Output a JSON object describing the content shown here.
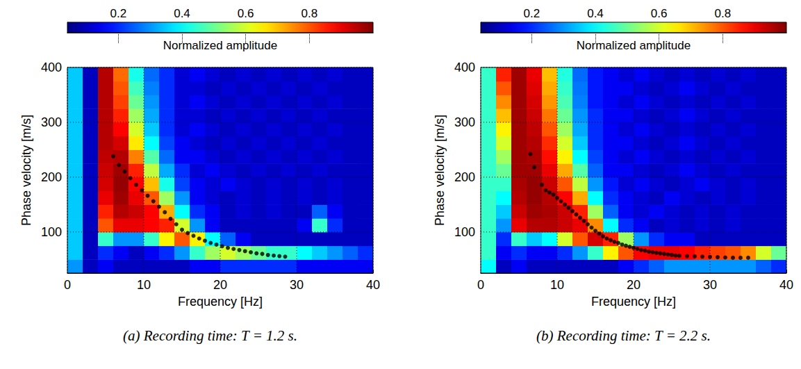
{
  "chart_data": [
    {
      "type": "heatmap",
      "caption": "(a) Recording time: T = 1.2 s.",
      "x_label": "Frequency [Hz]",
      "y_label": "Phase velocity [m/s]",
      "xlim": [
        0,
        40
      ],
      "xticks": [
        0,
        10,
        20,
        30,
        40
      ],
      "ylim": [
        25,
        400
      ],
      "yticks": [
        100,
        200,
        300,
        400
      ],
      "grid": true,
      "x_bins": [
        0,
        2,
        4,
        6,
        8,
        10,
        12,
        14,
        16,
        18,
        20,
        22,
        24,
        26,
        28,
        30,
        32,
        34,
        36,
        38,
        40
      ],
      "y_bins": [
        25,
        50,
        75,
        100,
        125,
        150,
        175,
        200,
        225,
        250,
        275,
        300,
        325,
        350,
        375,
        400
      ],
      "cells": [
        [
          0.3,
          0.1,
          0.15,
          0.1,
          0.1,
          0.1,
          0.1,
          0.1,
          0.15,
          0.15,
          0.2,
          0.2,
          0.2,
          0.2,
          0.2,
          0.15,
          0.15,
          0.15,
          0.15,
          0.15
        ],
        [
          0.35,
          0.1,
          0.2,
          0.15,
          0.1,
          0.15,
          0.2,
          0.3,
          0.45,
          0.55,
          0.6,
          0.55,
          0.5,
          0.45,
          0.45,
          0.4,
          0.35,
          0.3,
          0.25,
          0.2
        ],
        [
          0.35,
          0.1,
          0.45,
          0.3,
          0.3,
          0.45,
          0.65,
          0.8,
          0.65,
          0.4,
          0.25,
          0.15,
          0.1,
          0.1,
          0.1,
          0.1,
          0.1,
          0.1,
          0.1,
          0.1
        ],
        [
          0.35,
          0.1,
          0.8,
          0.9,
          0.9,
          0.88,
          0.85,
          0.6,
          0.3,
          0.15,
          0.1,
          0.1,
          0.1,
          0.1,
          0.1,
          0.15,
          0.45,
          0.2,
          0.1,
          0.1
        ],
        [
          0.35,
          0.1,
          0.85,
          0.95,
          0.93,
          0.88,
          0.72,
          0.4,
          0.2,
          0.15,
          0.1,
          0.12,
          0.1,
          0.12,
          0.1,
          0.1,
          0.25,
          0.15,
          0.1,
          0.1
        ],
        [
          0.35,
          0.1,
          0.9,
          0.97,
          0.9,
          0.8,
          0.55,
          0.3,
          0.15,
          0.12,
          0.1,
          0.12,
          0.1,
          0.12,
          0.1,
          0.12,
          0.1,
          0.12,
          0.1,
          0.1
        ],
        [
          0.35,
          0.1,
          0.92,
          0.98,
          0.88,
          0.7,
          0.42,
          0.22,
          0.15,
          0.12,
          0.15,
          0.12,
          0.1,
          0.12,
          0.1,
          0.12,
          0.1,
          0.12,
          0.1,
          0.1
        ],
        [
          0.35,
          0.1,
          0.93,
          0.97,
          0.85,
          0.58,
          0.32,
          0.2,
          0.12,
          0.15,
          0.12,
          0.1,
          0.12,
          0.1,
          0.12,
          0.1,
          0.12,
          0.1,
          0.1,
          0.1
        ],
        [
          0.35,
          0.1,
          0.94,
          0.95,
          0.76,
          0.48,
          0.26,
          0.15,
          0.15,
          0.12,
          0.1,
          0.12,
          0.1,
          0.12,
          0.1,
          0.12,
          0.1,
          0.12,
          0.1,
          0.1
        ],
        [
          0.35,
          0.1,
          0.95,
          0.92,
          0.66,
          0.4,
          0.22,
          0.15,
          0.12,
          0.1,
          0.12,
          0.1,
          0.12,
          0.1,
          0.12,
          0.1,
          0.12,
          0.1,
          0.1,
          0.1
        ],
        [
          0.35,
          0.1,
          0.95,
          0.88,
          0.6,
          0.35,
          0.2,
          0.12,
          0.15,
          0.12,
          0.1,
          0.12,
          0.1,
          0.12,
          0.1,
          0.12,
          0.1,
          0.12,
          0.1,
          0.1
        ],
        [
          0.35,
          0.1,
          0.95,
          0.85,
          0.55,
          0.32,
          0.2,
          0.12,
          0.12,
          0.1,
          0.12,
          0.1,
          0.12,
          0.1,
          0.12,
          0.1,
          0.12,
          0.1,
          0.1,
          0.1
        ],
        [
          0.35,
          0.1,
          0.95,
          0.82,
          0.5,
          0.3,
          0.2,
          0.12,
          0.15,
          0.12,
          0.1,
          0.12,
          0.1,
          0.12,
          0.1,
          0.12,
          0.1,
          0.12,
          0.1,
          0.1
        ],
        [
          0.35,
          0.1,
          0.95,
          0.8,
          0.46,
          0.28,
          0.2,
          0.12,
          0.12,
          0.1,
          0.12,
          0.1,
          0.12,
          0.1,
          0.12,
          0.1,
          0.12,
          0.1,
          0.1,
          0.1
        ],
        [
          0.35,
          0.1,
          0.95,
          0.78,
          0.42,
          0.26,
          0.2,
          0.12,
          0.15,
          0.12,
          0.1,
          0.12,
          0.1,
          0.12,
          0.1,
          0.12,
          0.1,
          0.12,
          0.1,
          0.1
        ]
      ],
      "colorbar": {
        "label": "Normalized amplitude",
        "range": [
          0.04,
          1
        ],
        "ticks": [
          0.2,
          0.4,
          0.6,
          0.8
        ]
      },
      "series": [
        {
          "type": "scatter",
          "color": "#000000",
          "marker": "circle",
          "x": [
            6,
            6.75,
            7.5,
            8.25,
            9,
            9.75,
            10.5,
            11.25,
            12,
            12.75,
            13.5,
            14.25,
            15,
            15.75,
            16.5,
            17.25,
            18,
            18.75,
            19.5,
            20.25,
            21,
            21.75,
            22.5,
            23.25,
            24,
            24.75,
            25.5,
            26.25,
            27,
            27.75,
            28.5
          ],
          "values": [
            238,
            222,
            210,
            198,
            186,
            176,
            166,
            156,
            146,
            136,
            124,
            114,
            104,
            98,
            93,
            88,
            84,
            80,
            77,
            74,
            71,
            69,
            67,
            65,
            63,
            61,
            60,
            58,
            57,
            56,
            55
          ]
        }
      ]
    },
    {
      "type": "heatmap",
      "caption": "(b) Recording time: T = 2.2 s.",
      "x_label": "Frequency [Hz]",
      "y_label": "Phase velocity [m/s]",
      "xlim": [
        0,
        40
      ],
      "xticks": [
        0,
        10,
        20,
        30,
        40
      ],
      "ylim": [
        25,
        400
      ],
      "yticks": [
        100,
        200,
        300,
        400
      ],
      "grid": true,
      "x_bins": [
        0,
        2,
        4,
        6,
        8,
        10,
        12,
        14,
        16,
        18,
        20,
        22,
        24,
        26,
        28,
        30,
        32,
        34,
        36,
        38,
        40
      ],
      "y_bins": [
        25,
        50,
        75,
        100,
        125,
        150,
        175,
        200,
        225,
        250,
        275,
        300,
        325,
        350,
        375,
        400
      ],
      "cells": [
        [
          0.4,
          0.1,
          0.15,
          0.1,
          0.1,
          0.1,
          0.1,
          0.1,
          0.1,
          0.15,
          0.2,
          0.25,
          0.3,
          0.3,
          0.3,
          0.3,
          0.3,
          0.3,
          0.25,
          0.2
        ],
        [
          0.45,
          0.15,
          0.2,
          0.15,
          0.15,
          0.2,
          0.3,
          0.45,
          0.65,
          0.8,
          0.88,
          0.9,
          0.9,
          0.88,
          0.85,
          0.82,
          0.8,
          0.75,
          0.6,
          0.5
        ],
        [
          0.45,
          0.2,
          0.45,
          0.35,
          0.4,
          0.6,
          0.8,
          0.92,
          0.85,
          0.55,
          0.3,
          0.2,
          0.15,
          0.15,
          0.1,
          0.1,
          0.1,
          0.1,
          0.1,
          0.1
        ],
        [
          0.45,
          0.3,
          0.9,
          0.95,
          0.95,
          0.93,
          0.9,
          0.75,
          0.4,
          0.2,
          0.15,
          0.1,
          0.12,
          0.1,
          0.12,
          0.1,
          0.12,
          0.1,
          0.1,
          0.1
        ],
        [
          0.45,
          0.35,
          0.93,
          0.97,
          0.96,
          0.93,
          0.85,
          0.55,
          0.25,
          0.15,
          0.12,
          0.15,
          0.12,
          0.1,
          0.12,
          0.1,
          0.12,
          0.1,
          0.1,
          0.1
        ],
        [
          0.45,
          0.4,
          0.95,
          0.98,
          0.95,
          0.88,
          0.72,
          0.4,
          0.2,
          0.15,
          0.12,
          0.1,
          0.15,
          0.12,
          0.1,
          0.12,
          0.1,
          0.12,
          0.1,
          0.1
        ],
        [
          0.45,
          0.45,
          0.96,
          0.98,
          0.93,
          0.8,
          0.58,
          0.3,
          0.18,
          0.12,
          0.15,
          0.12,
          0.1,
          0.12,
          0.15,
          0.12,
          0.1,
          0.12,
          0.1,
          0.1
        ],
        [
          0.45,
          0.5,
          0.97,
          0.97,
          0.9,
          0.72,
          0.48,
          0.25,
          0.15,
          0.15,
          0.12,
          0.1,
          0.12,
          0.15,
          0.12,
          0.1,
          0.12,
          0.1,
          0.1,
          0.1
        ],
        [
          0.45,
          0.55,
          0.97,
          0.96,
          0.87,
          0.65,
          0.4,
          0.22,
          0.15,
          0.12,
          0.15,
          0.12,
          0.1,
          0.12,
          0.1,
          0.12,
          0.1,
          0.12,
          0.1,
          0.1
        ],
        [
          0.45,
          0.6,
          0.97,
          0.95,
          0.84,
          0.6,
          0.35,
          0.2,
          0.15,
          0.15,
          0.12,
          0.1,
          0.12,
          0.15,
          0.12,
          0.1,
          0.12,
          0.1,
          0.1,
          0.1
        ],
        [
          0.45,
          0.65,
          0.97,
          0.94,
          0.8,
          0.55,
          0.32,
          0.2,
          0.15,
          0.12,
          0.15,
          0.12,
          0.1,
          0.12,
          0.1,
          0.12,
          0.1,
          0.12,
          0.1,
          0.1
        ],
        [
          0.45,
          0.7,
          0.97,
          0.93,
          0.77,
          0.5,
          0.3,
          0.2,
          0.15,
          0.15,
          0.12,
          0.1,
          0.12,
          0.15,
          0.12,
          0.1,
          0.12,
          0.1,
          0.1,
          0.1
        ],
        [
          0.45,
          0.75,
          0.97,
          0.92,
          0.74,
          0.47,
          0.28,
          0.18,
          0.15,
          0.12,
          0.15,
          0.12,
          0.1,
          0.12,
          0.1,
          0.12,
          0.1,
          0.12,
          0.1,
          0.1
        ],
        [
          0.45,
          0.8,
          0.97,
          0.91,
          0.72,
          0.45,
          0.27,
          0.18,
          0.15,
          0.15,
          0.12,
          0.1,
          0.12,
          0.15,
          0.12,
          0.1,
          0.12,
          0.1,
          0.1,
          0.1
        ],
        [
          0.45,
          0.85,
          0.97,
          0.9,
          0.7,
          0.43,
          0.26,
          0.18,
          0.15,
          0.12,
          0.15,
          0.12,
          0.1,
          0.12,
          0.1,
          0.12,
          0.1,
          0.12,
          0.1,
          0.1
        ]
      ],
      "colorbar": {
        "label": "Normalized amplitude",
        "range": [
          0.04,
          1
        ],
        "ticks": [
          0.2,
          0.4,
          0.6,
          0.8
        ]
      },
      "series": [
        {
          "type": "scatter",
          "color": "#000000",
          "marker": "circle",
          "x": [
            6.5,
            7,
            8,
            8.5,
            9,
            9.5,
            10,
            10.5,
            11,
            11.5,
            12,
            12.5,
            13,
            13.5,
            14,
            14.5,
            15,
            15.5,
            16,
            16.5,
            17,
            17.5,
            18,
            18.5,
            19,
            19.5,
            20,
            20.5,
            21,
            21.5,
            22,
            22.5,
            23,
            23.5,
            24,
            24.5,
            25,
            25.5,
            26,
            27,
            28,
            29,
            30,
            31,
            32,
            33,
            34,
            35
          ],
          "values": [
            242,
            218,
            186,
            176,
            172,
            168,
            162,
            156,
            150,
            144,
            138,
            132,
            126,
            120,
            114,
            108,
            102,
            97,
            92,
            88,
            85,
            82,
            80,
            77,
            75,
            73,
            71,
            69,
            67,
            66,
            64,
            63,
            62,
            61,
            60,
            59,
            58,
            57,
            56.5,
            56,
            55.5,
            55,
            54.5,
            54,
            53.5,
            53,
            53,
            53
          ]
        }
      ]
    }
  ]
}
